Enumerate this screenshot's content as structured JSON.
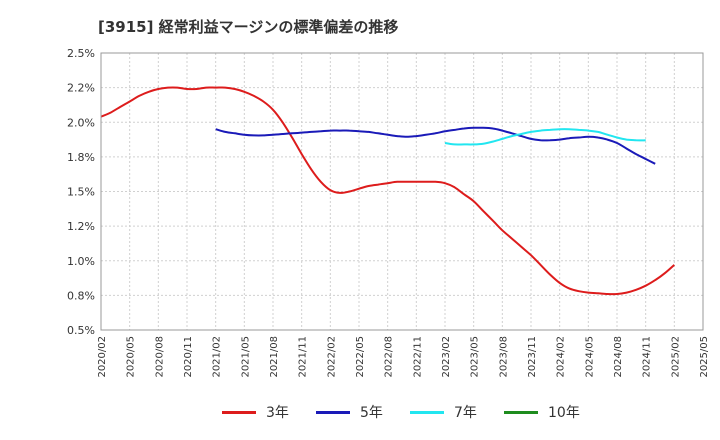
{
  "chart_data": {
    "type": "line",
    "title": "[3915]  経常利益マージンの標準偏差の推移",
    "xlabel": "",
    "ylabel": "",
    "ylim": [
      0.5,
      2.5
    ],
    "yticks": [
      0.5,
      0.75,
      1.0,
      1.25,
      1.5,
      1.75,
      2.0,
      2.25,
      2.5
    ],
    "ytick_labels": [
      "0.5%",
      "0.8%",
      "1.0%",
      "1.2%",
      "1.5%",
      "1.8%",
      "2.0%",
      "2.2%",
      "2.5%"
    ],
    "x_labels": [
      "2020/02",
      "2020/05",
      "2020/08",
      "2020/11",
      "2021/02",
      "2021/05",
      "2021/08",
      "2021/11",
      "2022/02",
      "2022/05",
      "2022/08",
      "2022/11",
      "2023/02",
      "2023/05",
      "2023/08",
      "2023/11",
      "2024/02",
      "2024/05",
      "2024/08",
      "2024/11",
      "2025/02",
      "2025/05"
    ],
    "grid": true,
    "legend_position": "bottom",
    "series": [
      {
        "name": "3年",
        "color": "#dd1c1c",
        "start_index": 0,
        "values": [
          2.04,
          2.07,
          2.11,
          2.15,
          2.19,
          2.22,
          2.24,
          2.25,
          2.25,
          2.24,
          2.24,
          2.25,
          2.25,
          2.25,
          2.24,
          2.22,
          2.19,
          2.15,
          2.09,
          2.0,
          1.89,
          1.77,
          1.66,
          1.57,
          1.51,
          1.49,
          1.5,
          1.52,
          1.54,
          1.55,
          1.56,
          1.57,
          1.57,
          1.57,
          1.57,
          1.57,
          1.56,
          1.53,
          1.48,
          1.43,
          1.36,
          1.29,
          1.22,
          1.16,
          1.1,
          1.04,
          0.97,
          0.9,
          0.84,
          0.8,
          0.78,
          0.77,
          0.765,
          0.76,
          0.76,
          0.77,
          0.79,
          0.82,
          0.86,
          0.91,
          0.97
        ]
      },
      {
        "name": "5年",
        "color": "#1a1ab8",
        "start_index": 12,
        "values": [
          1.95,
          1.93,
          1.92,
          1.91,
          1.905,
          1.905,
          1.91,
          1.915,
          1.92,
          1.925,
          1.93,
          1.935,
          1.94,
          1.94,
          1.94,
          1.935,
          1.93,
          1.92,
          1.91,
          1.9,
          1.895,
          1.9,
          1.91,
          1.92,
          1.935,
          1.945,
          1.955,
          1.96,
          1.96,
          1.955,
          1.94,
          1.92,
          1.9,
          1.88,
          1.87,
          1.87,
          1.875,
          1.885,
          1.89,
          1.895,
          1.89,
          1.875,
          1.85,
          1.81,
          1.77,
          1.735,
          1.7
        ]
      },
      {
        "name": "7年",
        "color": "#22e6f0",
        "start_index": 36,
        "values": [
          1.85,
          1.84,
          1.84,
          1.84,
          1.845,
          1.86,
          1.88,
          1.9,
          1.915,
          1.93,
          1.94,
          1.945,
          1.95,
          1.95,
          1.945,
          1.94,
          1.93,
          1.91,
          1.89,
          1.875,
          1.87,
          1.87
        ]
      },
      {
        "name": "10年",
        "color": "#1e8c1e",
        "start_index": 0,
        "values": []
      }
    ]
  }
}
